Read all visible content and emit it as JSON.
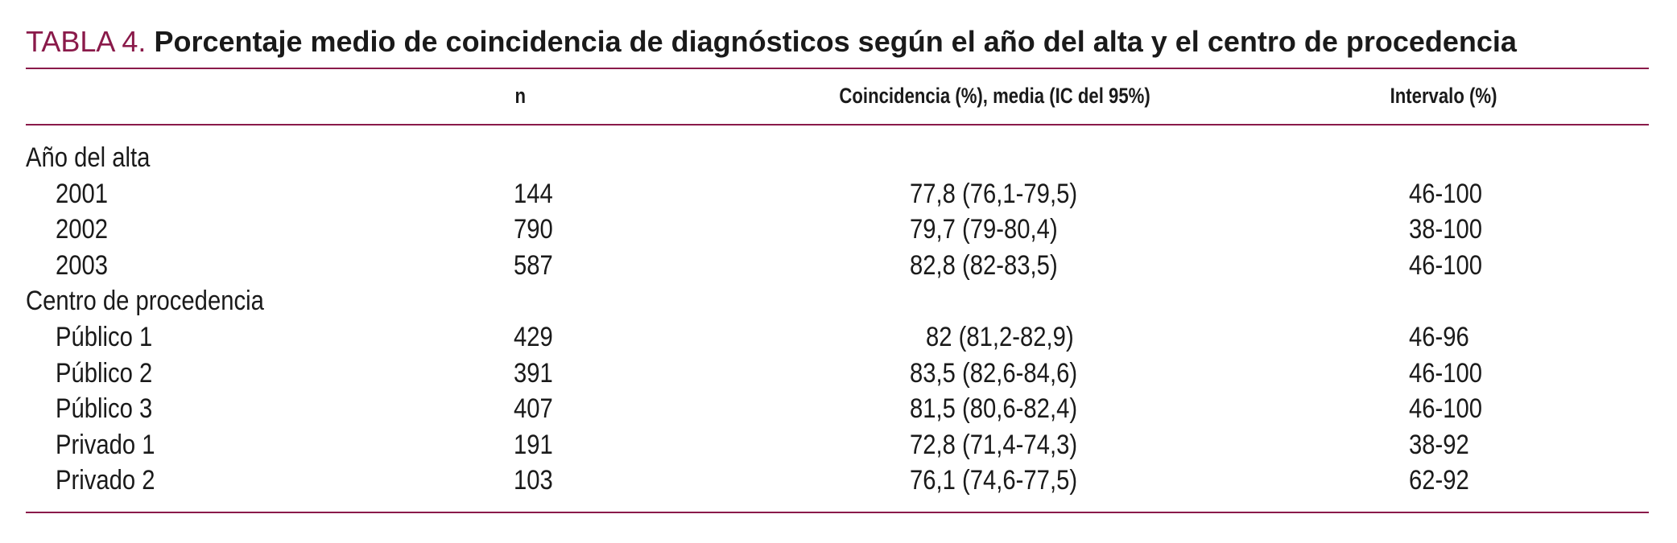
{
  "caption": {
    "label": "TABLA 4.",
    "title": "Porcentaje medio de coincidencia de diagnósticos según el año del alta y el centro de procedencia"
  },
  "columns": {
    "label": "",
    "n": "n",
    "coincidencia": "Coincidencia (%), media (IC del 95%)",
    "intervalo": "Intervalo (%)"
  },
  "sections": [
    {
      "heading": "Año del alta",
      "rows": [
        {
          "label": "2001",
          "n": "144",
          "coincidencia": "77,8 (76,1-79,5)",
          "intervalo": "46-100"
        },
        {
          "label": "2002",
          "n": "790",
          "coincidencia": "79,7 (79-80,4)",
          "intervalo": "38-100"
        },
        {
          "label": "2003",
          "n": "587",
          "coincidencia": "82,8 (82-83,5)",
          "intervalo": "46-100"
        }
      ]
    },
    {
      "heading": "Centro de procedencia",
      "rows": [
        {
          "label": "Público 1",
          "n": "429",
          "coincidencia": "82 (81,2-82,9)",
          "intervalo": "46-96"
        },
        {
          "label": "Público 2",
          "n": "391",
          "coincidencia": "83,5 (82,6-84,6)",
          "intervalo": "46-100"
        },
        {
          "label": "Público 3",
          "n": "407",
          "coincidencia": "81,5 (80,6-82,4)",
          "intervalo": "46-100"
        },
        {
          "label": "Privado 1",
          "n": "191",
          "coincidencia": "72,8 (71,4-74,3)",
          "intervalo": "38-92"
        },
        {
          "label": "Privado 2",
          "n": "103",
          "coincidencia": "76,1 (74,6-77,5)",
          "intervalo": "62-92"
        }
      ]
    }
  ],
  "colors": {
    "accent": "#8a1a4a",
    "text": "#1a1a1a"
  }
}
